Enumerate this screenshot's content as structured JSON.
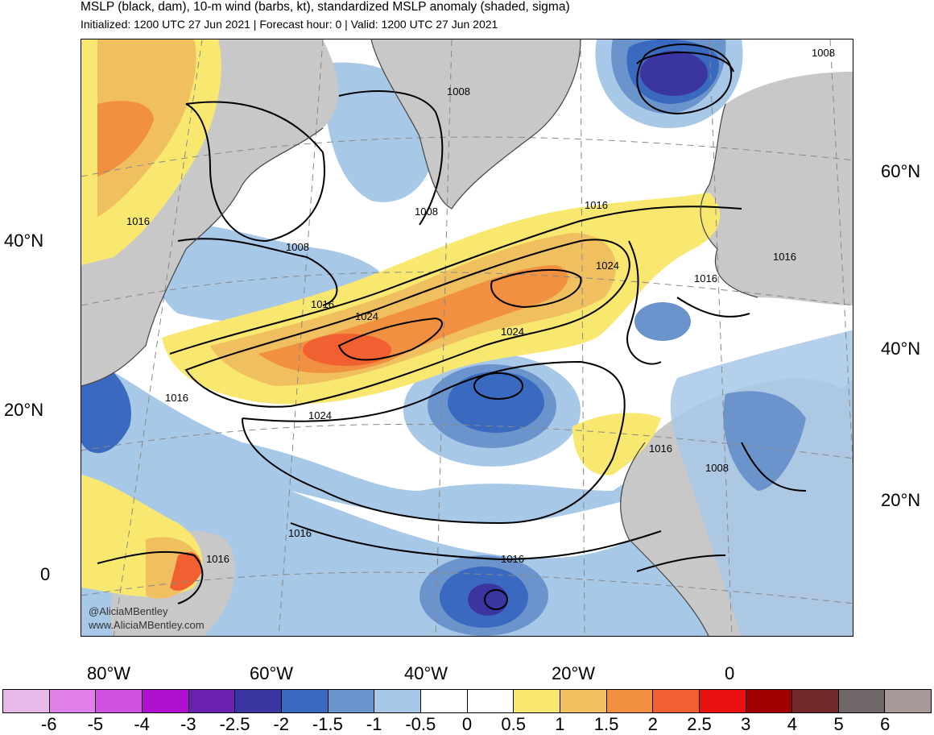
{
  "title": "MSLP (black, dam), 10-m wind (barbs, kt), standardized MSLP anomaly (shaded, sigma)",
  "subtitle": "Initialized: 1200 UTC 27 Jun 2021 | Forecast hour: 0 | Valid: 1200 UTC 27 Jun 2021",
  "credit": [
    "@AliciaMBentley",
    "www.AliciaMBentley.com"
  ],
  "axis_labels": {
    "left_lat": [
      "40°N",
      "20°N",
      "0"
    ],
    "right_lat": [
      "60°N",
      "40°N",
      "20°N"
    ],
    "bottom_lon": [
      "80°W",
      "60°W",
      "40°W",
      "20°W",
      "0"
    ]
  },
  "contour_labels": [
    "1008",
    "1008",
    "1016",
    "1008",
    "1016",
    "1008",
    "1016",
    "1016",
    "1024",
    "1024",
    "1024",
    "1024",
    "1016",
    "1016",
    "1016",
    "1008",
    "1016",
    "1016",
    "1016"
  ],
  "colorbar": {
    "ticks": [
      "-6",
      "-5",
      "-4",
      "-3",
      "-2.5",
      "-2",
      "-1.5",
      "-1",
      "-0.5",
      "0",
      "0.5",
      "1",
      "1.5",
      "2",
      "2.5",
      "3",
      "4",
      "5",
      "6"
    ],
    "colors": [
      "#e8b8e8",
      "#e080e8",
      "#d050e0",
      "#b010d0",
      "#6a20b0",
      "#3a35a0",
      "#3a6ac0",
      "#6c94cc",
      "#a8c8e8",
      "#ffffff",
      "#ffffff",
      "#f8e870",
      "#f0c060",
      "#f09040",
      "#f06030",
      "#e81010",
      "#a00000",
      "#702828",
      "#706868",
      "#a89898"
    ]
  },
  "colors": {
    "land": "#c8c8c8",
    "ocean": "#ffffff"
  }
}
